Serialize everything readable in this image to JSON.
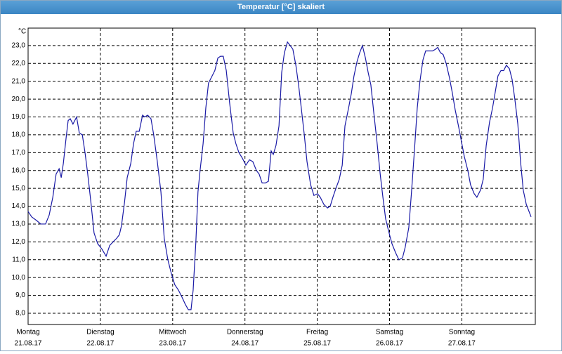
{
  "chart_data": {
    "type": "line",
    "title": "Temperatur [°C] skaliert",
    "y_unit": "°C",
    "color": "#1a1aa6",
    "grid": true,
    "xlim": [
      0,
      168.4
    ],
    "ylim": [
      7.37,
      23.98
    ],
    "xticks": [
      {
        "value": 0,
        "label": "Montag",
        "date": "21.08.17"
      },
      {
        "value": 24,
        "label": "Dienstag",
        "date": "22.08.17"
      },
      {
        "value": 48,
        "label": "Mittwoch",
        "date": "23.08.17"
      },
      {
        "value": 72,
        "label": "Donnerstag",
        "date": "24.08.17"
      },
      {
        "value": 96,
        "label": "Freitag",
        "date": "25.08.17"
      },
      {
        "value": 120,
        "label": "Samstag",
        "date": "26.08.17"
      },
      {
        "value": 144,
        "label": "Sonntag",
        "date": "27.08.17"
      }
    ],
    "yticks": [
      {
        "value": 8,
        "label": "8,0"
      },
      {
        "value": 9,
        "label": "9,0"
      },
      {
        "value": 10,
        "label": "10,0"
      },
      {
        "value": 11,
        "label": "11,0"
      },
      {
        "value": 12,
        "label": "12,0"
      },
      {
        "value": 13,
        "label": "13,0"
      },
      {
        "value": 14,
        "label": "14,0"
      },
      {
        "value": 15,
        "label": "15,0"
      },
      {
        "value": 16,
        "label": "16,0"
      },
      {
        "value": 17,
        "label": "17,0"
      },
      {
        "value": 18,
        "label": "18,0"
      },
      {
        "value": 19,
        "label": "19,0"
      },
      {
        "value": 20,
        "label": "20,0"
      },
      {
        "value": 21,
        "label": "21,0"
      },
      {
        "value": 22,
        "label": "22,0"
      },
      {
        "value": 23,
        "label": "23,0"
      }
    ],
    "x": [
      0,
      1.2,
      2.8,
      4.2,
      5.8,
      7.0,
      8.2,
      9.3,
      10.3,
      11.0,
      11.7,
      12.6,
      13.3,
      14.0,
      14.9,
      16.1,
      17.0,
      18.0,
      18.9,
      19.8,
      20.8,
      21.9,
      23.1,
      24.5,
      25.9,
      27.1,
      28.2,
      29.4,
      30.3,
      31.0,
      32.0,
      32.9,
      34.1,
      35.0,
      35.9,
      36.9,
      38.0,
      38.7,
      39.7,
      40.8,
      41.7,
      42.9,
      44.1,
      45.2,
      46.4,
      47.6,
      48.7,
      49.9,
      51.1,
      52.2,
      53.2,
      54.1,
      54.8,
      55.7,
      56.4,
      57.1,
      58.1,
      59.0,
      59.9,
      61.1,
      62.0,
      63.0,
      63.9,
      64.8,
      65.8,
      66.9,
      68.1,
      69.0,
      70.0,
      71.1,
      72.3,
      73.5,
      74.6,
      75.8,
      76.7,
      77.7,
      78.8,
      79.8,
      80.7,
      81.4,
      82.3,
      83.3,
      84.2,
      85.1,
      86.1,
      87.0,
      87.9,
      88.9,
      89.8,
      90.7,
      91.7,
      92.6,
      93.8,
      94.9,
      96.1,
      97.0,
      98.2,
      99.4,
      100.3,
      101.2,
      102.2,
      103.3,
      104.3,
      105.2,
      106.4,
      107.3,
      108.2,
      109.2,
      110.1,
      111.0,
      112.0,
      112.9,
      113.8,
      114.8,
      115.9,
      116.9,
      117.8,
      118.7,
      119.7,
      120.8,
      122.0,
      123.1,
      124.3,
      125.2,
      126.4,
      127.3,
      128.3,
      129.2,
      130.1,
      131.1,
      132.0,
      133.2,
      134.3,
      135.3,
      136.0,
      136.9,
      137.8,
      138.8,
      139.9,
      140.9,
      141.8,
      143.0,
      143.9,
      144.8,
      146.0,
      146.9,
      148.1,
      149.0,
      150.2,
      151.1,
      152.1,
      153.2,
      154.2,
      155.1,
      156.0,
      157.0,
      157.9,
      158.8,
      159.8,
      160.7,
      161.6,
      162.6,
      163.5,
      164.4,
      165.4,
      166.1,
      167.0
    ],
    "values": [
      13.7,
      13.4,
      13.2,
      13.0,
      13.0,
      13.5,
      14.5,
      15.8,
      16.1,
      15.6,
      16.4,
      17.8,
      18.8,
      18.9,
      18.6,
      19.0,
      18.1,
      18.0,
      17.0,
      15.8,
      14.3,
      12.5,
      11.9,
      11.6,
      11.2,
      11.8,
      12.0,
      12.2,
      12.4,
      12.9,
      14.2,
      15.6,
      16.4,
      17.5,
      18.2,
      18.2,
      19.1,
      19.0,
      19.1,
      18.9,
      18.0,
      16.5,
      14.8,
      12.2,
      11.0,
      10.2,
      9.6,
      9.3,
      8.9,
      8.5,
      8.2,
      8.2,
      9.3,
      12.0,
      14.8,
      16.0,
      17.5,
      19.5,
      20.9,
      21.3,
      21.6,
      22.3,
      22.4,
      22.4,
      21.6,
      19.8,
      18.1,
      17.5,
      17.0,
      16.7,
      16.3,
      16.6,
      16.5,
      16.0,
      15.8,
      15.3,
      15.3,
      15.4,
      17.1,
      16.9,
      17.4,
      18.5,
      21.5,
      22.6,
      23.2,
      23.0,
      22.8,
      21.9,
      20.8,
      19.5,
      18.0,
      16.5,
      15.2,
      14.6,
      14.7,
      14.5,
      14.1,
      13.9,
      14.0,
      14.5,
      15.0,
      15.5,
      16.3,
      18.5,
      19.5,
      20.3,
      21.3,
      22.1,
      22.6,
      23.0,
      22.3,
      21.5,
      20.8,
      19.2,
      17.5,
      15.8,
      14.5,
      13.3,
      12.6,
      11.9,
      11.4,
      11.0,
      11.1,
      11.7,
      12.8,
      14.8,
      17.2,
      19.5,
      21.0,
      22.2,
      22.7,
      22.7,
      22.7,
      22.8,
      22.9,
      22.6,
      22.5,
      22.0,
      21.2,
      20.3,
      19.4,
      18.4,
      17.6,
      16.8,
      16.0,
      15.2,
      14.7,
      14.5,
      14.9,
      15.5,
      17.4,
      18.7,
      19.5,
      20.4,
      21.3,
      21.6,
      21.6,
      21.9,
      21.7,
      21.1,
      20.0,
      18.6,
      16.5,
      14.9,
      14.1,
      13.8,
      13.4
    ]
  }
}
